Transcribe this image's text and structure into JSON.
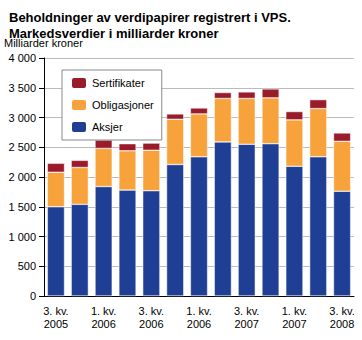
{
  "chart_data": {
    "type": "bar",
    "title": "Beholdninger av verdipapirer registrert i VPS.\nMarkedsverdier i milliarder kroner",
    "ylabel": "Milliarder kroner",
    "categories": [
      "3. kv.\n2005",
      null,
      "1. kv.\n2006",
      null,
      "3. kv.\n2006",
      null,
      "1. kv.\n2006",
      null,
      "3. kv.\n2007",
      null,
      "1. kv.\n2007",
      null,
      "3. kv.\n2008"
    ],
    "stacked": true,
    "series": [
      {
        "name": "Aksjer",
        "color": "#1f3f95",
        "values": [
          1500,
          1540,
          1840,
          1780,
          1770,
          2210,
          2340,
          2590,
          2550,
          2560,
          2180,
          2340,
          1760
        ]
      },
      {
        "name": "Obligasjoner",
        "color": "#f7a23b",
        "values": [
          580,
          620,
          640,
          660,
          680,
          760,
          720,
          730,
          770,
          770,
          780,
          810,
          840
        ]
      },
      {
        "name": "Sertifikater",
        "color": "#9a1b2a",
        "values": [
          150,
          120,
          140,
          120,
          120,
          90,
          100,
          100,
          110,
          150,
          140,
          150,
          140
        ]
      }
    ],
    "ylim": [
      0,
      4000
    ],
    "yticks": [
      0,
      500,
      {
        "value": 1000,
        "label": "1 000"
      },
      {
        "value": 1500,
        "label": "1 500"
      },
      {
        "value": 2000,
        "label": "2 000"
      },
      {
        "value": 2500,
        "label": "2 500"
      },
      {
        "value": 3000,
        "label": "3 000"
      },
      {
        "value": 3500,
        "label": "3 500"
      },
      {
        "value": 4000,
        "label": "4 000"
      }
    ],
    "grid": true,
    "legend": "top-left"
  }
}
